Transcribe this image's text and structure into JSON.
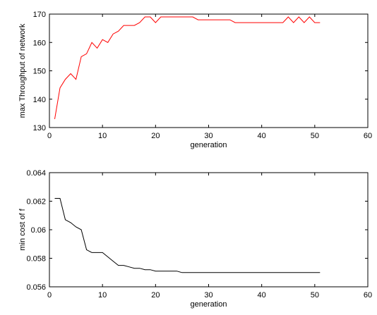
{
  "chart_data": [
    {
      "type": "line",
      "xlabel": "generation",
      "ylabel": "max Throughput of network",
      "xlim": [
        0,
        60
      ],
      "ylim": [
        130,
        170
      ],
      "xticks": [
        0,
        10,
        20,
        30,
        40,
        50,
        60
      ],
      "yticks": [
        130,
        140,
        150,
        160,
        170
      ],
      "grid": false,
      "color": "#ff0000",
      "x": [
        1,
        2,
        3,
        4,
        5,
        6,
        7,
        8,
        9,
        10,
        11,
        12,
        13,
        14,
        15,
        16,
        17,
        18,
        19,
        20,
        21,
        22,
        23,
        24,
        25,
        26,
        27,
        28,
        29,
        30,
        31,
        32,
        33,
        34,
        35,
        36,
        37,
        38,
        39,
        40,
        41,
        42,
        43,
        44,
        45,
        46,
        47,
        48,
        49,
        50,
        51
      ],
      "y": [
        133,
        144,
        147,
        149,
        147,
        155,
        156,
        160,
        158,
        161,
        160,
        163,
        164,
        166,
        166,
        166,
        167,
        169,
        169,
        167,
        169,
        169,
        169,
        169,
        169,
        169,
        169,
        168,
        168,
        168,
        168,
        168,
        168,
        168,
        167,
        167,
        167,
        167,
        167,
        167,
        167,
        167,
        167,
        167,
        169,
        167,
        169,
        167,
        169,
        167,
        167
      ]
    },
    {
      "type": "line",
      "xlabel": "generation",
      "ylabel": "min cost of f",
      "xlim": [
        0,
        60
      ],
      "ylim": [
        0.056,
        0.064
      ],
      "xticks": [
        0,
        10,
        20,
        30,
        40,
        50,
        60
      ],
      "yticks": [
        0.056,
        0.058,
        0.06,
        0.062,
        0.064
      ],
      "grid": false,
      "color": "#000000",
      "x": [
        1,
        2,
        3,
        4,
        5,
        6,
        7,
        8,
        9,
        10,
        11,
        12,
        13,
        14,
        15,
        16,
        17,
        18,
        19,
        20,
        21,
        22,
        23,
        24,
        25,
        26,
        27,
        28,
        29,
        30,
        31,
        32,
        33,
        34,
        35,
        36,
        37,
        38,
        39,
        40,
        41,
        42,
        43,
        44,
        45,
        46,
        47,
        48,
        49,
        50,
        51
      ],
      "y": [
        0.0622,
        0.0622,
        0.0607,
        0.0605,
        0.0602,
        0.06,
        0.0586,
        0.0584,
        0.0584,
        0.0584,
        0.0581,
        0.0578,
        0.0575,
        0.0575,
        0.0574,
        0.0573,
        0.0573,
        0.0572,
        0.0572,
        0.0571,
        0.0571,
        0.0571,
        0.0571,
        0.0571,
        0.057,
        0.057,
        0.057,
        0.057,
        0.057,
        0.057,
        0.057,
        0.057,
        0.057,
        0.057,
        0.057,
        0.057,
        0.057,
        0.057,
        0.057,
        0.057,
        0.057,
        0.057,
        0.057,
        0.057,
        0.057,
        0.057,
        0.057,
        0.057,
        0.057,
        0.057,
        0.057
      ]
    }
  ]
}
